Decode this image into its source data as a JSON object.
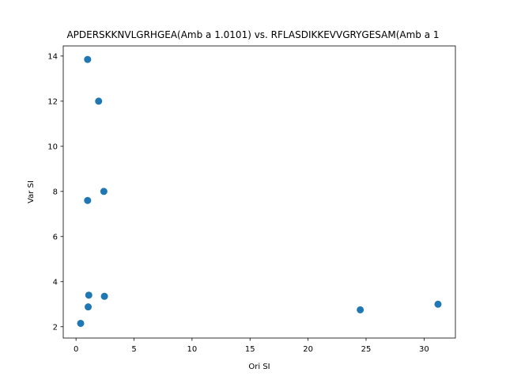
{
  "chart_data": {
    "type": "scatter",
    "title": "APDERSKKNVLGRHGEA(Amb a 1.0101) vs. RFLASDIKKEVVGRYGESAM(Amb a 1",
    "xlabel": "Ori SI",
    "ylabel": "Var SI",
    "xlim": [
      -1.1,
      32.7
    ],
    "ylim": [
      1.5,
      14.45
    ],
    "xticks": [
      0,
      5,
      10,
      15,
      20,
      25,
      30
    ],
    "yticks": [
      2,
      4,
      6,
      8,
      10,
      12,
      14
    ],
    "grid": false,
    "marker_color": "#1f77b4",
    "points": [
      {
        "x": 1.0,
        "y": 13.85
      },
      {
        "x": 1.95,
        "y": 12.0
      },
      {
        "x": 2.4,
        "y": 8.0
      },
      {
        "x": 1.0,
        "y": 7.6
      },
      {
        "x": 1.1,
        "y": 3.4
      },
      {
        "x": 2.45,
        "y": 3.35
      },
      {
        "x": 1.05,
        "y": 2.88
      },
      {
        "x": 0.4,
        "y": 2.15
      },
      {
        "x": 24.5,
        "y": 2.75
      },
      {
        "x": 31.2,
        "y": 3.0
      }
    ]
  }
}
